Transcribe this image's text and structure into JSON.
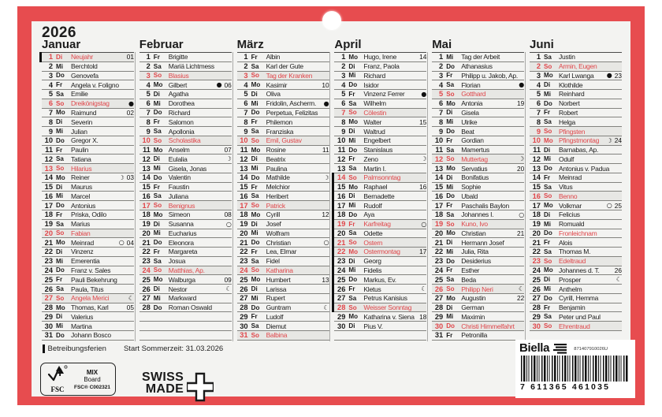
{
  "year": "2026",
  "colors": {
    "frame_red": "#e74c4f",
    "card_bg": "#f3f3f1",
    "holiday_red": "#e0474b",
    "shade": "#e7e7e4"
  },
  "moon_glyphs": {
    "new": "●",
    "first": "☽",
    "full": "○",
    "last": "☾"
  },
  "legend": {
    "betreibungsferien": "Betreibungsferien",
    "sommerzeit": "Start Sommerzeit: 31.03.2026"
  },
  "fsc": {
    "label": "FSC",
    "mix": "MIX",
    "board": "Board",
    "cert": "FSC® C002321"
  },
  "swiss": {
    "line1": "SWISS",
    "line2": "MADE"
  },
  "brand": {
    "name": "Biella",
    "code": "871407910026U"
  },
  "barcode": {
    "digits": "7 611365 461035"
  },
  "months": [
    {
      "name": "Januar",
      "days": [
        {
          "d": 1,
          "wd": "Di",
          "name": "Neujahr",
          "red": true,
          "bar": true,
          "week": "01"
        },
        {
          "d": 2,
          "wd": "Mi",
          "name": "Berchtold"
        },
        {
          "d": 3,
          "wd": "Do",
          "name": "Genovefa"
        },
        {
          "d": 4,
          "wd": "Fr",
          "name": "Angela v. Foligno"
        },
        {
          "d": 5,
          "wd": "Sa",
          "name": "Emilie"
        },
        {
          "d": 6,
          "wd": "So",
          "name": "Dreikönigstag",
          "red": true,
          "moon": "new"
        },
        {
          "d": 7,
          "wd": "Mo",
          "name": "Raimund",
          "week": "02"
        },
        {
          "d": 8,
          "wd": "Di",
          "name": "Severin"
        },
        {
          "d": 9,
          "wd": "Mi",
          "name": "Julian"
        },
        {
          "d": 10,
          "wd": "Do",
          "name": "Gregor X."
        },
        {
          "d": 11,
          "wd": "Fr",
          "name": "Paulin"
        },
        {
          "d": 12,
          "wd": "Sa",
          "name": "Tatiana"
        },
        {
          "d": 13,
          "wd": "So",
          "name": "Hilarius",
          "red": true
        },
        {
          "d": 14,
          "wd": "Mo",
          "name": "Reiner",
          "moon": "first",
          "week": "03"
        },
        {
          "d": 15,
          "wd": "Di",
          "name": "Maurus"
        },
        {
          "d": 16,
          "wd": "Mi",
          "name": "Marcel"
        },
        {
          "d": 17,
          "wd": "Do",
          "name": "Antonius"
        },
        {
          "d": 18,
          "wd": "Fr",
          "name": "Priska, Odilo"
        },
        {
          "d": 19,
          "wd": "Sa",
          "name": "Marius"
        },
        {
          "d": 20,
          "wd": "So",
          "name": "Fabian",
          "red": true
        },
        {
          "d": 21,
          "wd": "Mo",
          "name": "Meinrad",
          "moon": "full",
          "week": "04"
        },
        {
          "d": 22,
          "wd": "Di",
          "name": "Vinzenz"
        },
        {
          "d": 23,
          "wd": "Mi",
          "name": "Emerentia"
        },
        {
          "d": 24,
          "wd": "Do",
          "name": "Franz v. Sales"
        },
        {
          "d": 25,
          "wd": "Fr",
          "name": "Pauli Bekehrung"
        },
        {
          "d": 26,
          "wd": "Sa",
          "name": "Paula, Titus"
        },
        {
          "d": 27,
          "wd": "So",
          "name": "Angela Merici",
          "red": true,
          "moon": "last"
        },
        {
          "d": 28,
          "wd": "Mo",
          "name": "Thomas, Karl",
          "week": "05"
        },
        {
          "d": 29,
          "wd": "Di",
          "name": "Valerius"
        },
        {
          "d": 30,
          "wd": "Mi",
          "name": "Martina"
        },
        {
          "d": 31,
          "wd": "Do",
          "name": "Johann Bosco"
        }
      ]
    },
    {
      "name": "Februar",
      "days": [
        {
          "d": 1,
          "wd": "Fr",
          "name": "Brigitte"
        },
        {
          "d": 2,
          "wd": "Sa",
          "name": "Mariä Lichtmess"
        },
        {
          "d": 3,
          "wd": "So",
          "name": "Blasius",
          "red": true
        },
        {
          "d": 4,
          "wd": "Mo",
          "name": "Gilbert",
          "moon": "new",
          "week": "06"
        },
        {
          "d": 5,
          "wd": "Di",
          "name": "Agatha"
        },
        {
          "d": 6,
          "wd": "Mi",
          "name": "Dorothea"
        },
        {
          "d": 7,
          "wd": "Do",
          "name": "Richard"
        },
        {
          "d": 8,
          "wd": "Fr",
          "name": "Salomon"
        },
        {
          "d": 9,
          "wd": "Sa",
          "name": "Apollonia"
        },
        {
          "d": 10,
          "wd": "So",
          "name": "Scholastika",
          "red": true
        },
        {
          "d": 11,
          "wd": "Mo",
          "name": "Anselm",
          "week": "07"
        },
        {
          "d": 12,
          "wd": "Di",
          "name": "Eulalia",
          "moon": "first"
        },
        {
          "d": 13,
          "wd": "Mi",
          "name": "Gisela, Jonas"
        },
        {
          "d": 14,
          "wd": "Do",
          "name": "Valentin"
        },
        {
          "d": 15,
          "wd": "Fr",
          "name": "Faustin"
        },
        {
          "d": 16,
          "wd": "Sa",
          "name": "Juliana"
        },
        {
          "d": 17,
          "wd": "So",
          "name": "Benignus",
          "red": true
        },
        {
          "d": 18,
          "wd": "Mo",
          "name": "Simeon",
          "week": "08"
        },
        {
          "d": 19,
          "wd": "Di",
          "name": "Susanna",
          "moon": "full"
        },
        {
          "d": 20,
          "wd": "Mi",
          "name": "Eucharius"
        },
        {
          "d": 21,
          "wd": "Do",
          "name": "Eleonora"
        },
        {
          "d": 22,
          "wd": "Fr",
          "name": "Margareta"
        },
        {
          "d": 23,
          "wd": "Sa",
          "name": "Josua"
        },
        {
          "d": 24,
          "wd": "So",
          "name": "Matthias, Ap.",
          "red": true
        },
        {
          "d": 25,
          "wd": "Mo",
          "name": "Walburga",
          "week": "09"
        },
        {
          "d": 26,
          "wd": "Di",
          "name": "Nestor",
          "moon": "last"
        },
        {
          "d": 27,
          "wd": "Mi",
          "name": "Markward"
        },
        {
          "d": 28,
          "wd": "Do",
          "name": "Roman Oswald"
        }
      ]
    },
    {
      "name": "März",
      "days": [
        {
          "d": 1,
          "wd": "Fr",
          "name": "Albin"
        },
        {
          "d": 2,
          "wd": "Sa",
          "name": "Karl der Gute"
        },
        {
          "d": 3,
          "wd": "So",
          "name": "Tag der Kranken",
          "red": true
        },
        {
          "d": 4,
          "wd": "Mo",
          "name": "Kasimir",
          "week": "10"
        },
        {
          "d": 5,
          "wd": "Di",
          "name": "Oliva"
        },
        {
          "d": 6,
          "wd": "Mi",
          "name": "Fridolin, Ascherm.",
          "moon": "new"
        },
        {
          "d": 7,
          "wd": "Do",
          "name": "Perpetua, Felizitas"
        },
        {
          "d": 8,
          "wd": "Fr",
          "name": "Philemon"
        },
        {
          "d": 9,
          "wd": "Sa",
          "name": "Franziska"
        },
        {
          "d": 10,
          "wd": "So",
          "name": "Emil, Gustav",
          "red": true
        },
        {
          "d": 11,
          "wd": "Mo",
          "name": "Rosine",
          "week": "11"
        },
        {
          "d": 12,
          "wd": "Di",
          "name": "Beatrix"
        },
        {
          "d": 13,
          "wd": "Mi",
          "name": "Paulina"
        },
        {
          "d": 14,
          "wd": "Do",
          "name": "Mathilde",
          "moon": "first"
        },
        {
          "d": 15,
          "wd": "Fr",
          "name": "Melchior"
        },
        {
          "d": 16,
          "wd": "Sa",
          "name": "Heribert"
        },
        {
          "d": 17,
          "wd": "So",
          "name": "Patrick",
          "red": true
        },
        {
          "d": 18,
          "wd": "Mo",
          "name": "Cyrill",
          "week": "12"
        },
        {
          "d": 19,
          "wd": "Di",
          "name": "Josef"
        },
        {
          "d": 20,
          "wd": "Mi",
          "name": "Wolfram"
        },
        {
          "d": 21,
          "wd": "Do",
          "name": "Christian",
          "moon": "full"
        },
        {
          "d": 22,
          "wd": "Fr",
          "name": "Lea, Elmar"
        },
        {
          "d": 23,
          "wd": "Sa",
          "name": "Fidel"
        },
        {
          "d": 24,
          "wd": "So",
          "name": "Katharina",
          "red": true
        },
        {
          "d": 25,
          "wd": "Mo",
          "name": "Humbert",
          "week": "13"
        },
        {
          "d": 26,
          "wd": "Di",
          "name": "Larissa"
        },
        {
          "d": 27,
          "wd": "Mi",
          "name": "Rupert"
        },
        {
          "d": 28,
          "wd": "Do",
          "name": "Guntram",
          "moon": "last"
        },
        {
          "d": 29,
          "wd": "Fr",
          "name": "Ludolf"
        },
        {
          "d": 30,
          "wd": "Sa",
          "name": "Diemut"
        },
        {
          "d": 31,
          "wd": "So",
          "name": "Balbina",
          "red": true
        }
      ]
    },
    {
      "name": "April",
      "days": [
        {
          "d": 1,
          "wd": "Mo",
          "name": "Hugo, Irene",
          "week": "14"
        },
        {
          "d": 2,
          "wd": "Di",
          "name": "Franz, Paola"
        },
        {
          "d": 3,
          "wd": "Mi",
          "name": "Richard"
        },
        {
          "d": 4,
          "wd": "Do",
          "name": "Isidor"
        },
        {
          "d": 5,
          "wd": "Fr",
          "name": "Vinzenz Ferrer",
          "moon": "new"
        },
        {
          "d": 6,
          "wd": "Sa",
          "name": "Wilhelm"
        },
        {
          "d": 7,
          "wd": "So",
          "name": "Cölestin",
          "red": true
        },
        {
          "d": 8,
          "wd": "Mo",
          "name": "Walter",
          "week": "15"
        },
        {
          "d": 9,
          "wd": "Di",
          "name": "Waltrud"
        },
        {
          "d": 10,
          "wd": "Mi",
          "name": "Engelbert"
        },
        {
          "d": 11,
          "wd": "Do",
          "name": "Stanislaus"
        },
        {
          "d": 12,
          "wd": "Fr",
          "name": "Zeno",
          "moon": "first"
        },
        {
          "d": 13,
          "wd": "Sa",
          "name": "Martin I."
        },
        {
          "d": 14,
          "wd": "So",
          "name": "Palmsonntag",
          "red": true,
          "bar": true
        },
        {
          "d": 15,
          "wd": "Mo",
          "name": "Raphael",
          "week": "16",
          "bar": true
        },
        {
          "d": 16,
          "wd": "Di",
          "name": "Bernadette",
          "bar": true
        },
        {
          "d": 17,
          "wd": "Mi",
          "name": "Rudolf",
          "bar": true
        },
        {
          "d": 18,
          "wd": "Do",
          "name": "Aya",
          "bar": true
        },
        {
          "d": 19,
          "wd": "Fr",
          "name": "Karfreitag",
          "red": true,
          "moon": "full",
          "bar": true
        },
        {
          "d": 20,
          "wd": "Sa",
          "name": "Odette",
          "bar": true
        },
        {
          "d": 21,
          "wd": "So",
          "name": "Ostern",
          "red": true,
          "bar": true
        },
        {
          "d": 22,
          "wd": "Mo",
          "name": "Ostermontag",
          "red": true,
          "week": "17",
          "bar": true
        },
        {
          "d": 23,
          "wd": "Di",
          "name": "Georg",
          "bar": true
        },
        {
          "d": 24,
          "wd": "Mi",
          "name": "Fidelis",
          "bar": true
        },
        {
          "d": 25,
          "wd": "Do",
          "name": "Markus, Ev.",
          "bar": true
        },
        {
          "d": 26,
          "wd": "Fr",
          "name": "Kletus",
          "moon": "last",
          "bar": true
        },
        {
          "d": 27,
          "wd": "Sa",
          "name": "Petrus Kanisius",
          "bar": true
        },
        {
          "d": 28,
          "wd": "So",
          "name": "Weisser Sonntag",
          "red": true,
          "bar": true
        },
        {
          "d": 29,
          "wd": "Mo",
          "name": "Katharina v. Siena",
          "week": "18"
        },
        {
          "d": 30,
          "wd": "Di",
          "name": "Pius V."
        }
      ]
    },
    {
      "name": "Mai",
      "days": [
        {
          "d": 1,
          "wd": "Mi",
          "name": "Tag der Arbeit"
        },
        {
          "d": 2,
          "wd": "Do",
          "name": "Athanasius"
        },
        {
          "d": 3,
          "wd": "Fr",
          "name": "Philipp u. Jakob, Ap."
        },
        {
          "d": 4,
          "wd": "Sa",
          "name": "Florian",
          "moon": "new"
        },
        {
          "d": 5,
          "wd": "So",
          "name": "Gotthard",
          "red": true
        },
        {
          "d": 6,
          "wd": "Mo",
          "name": "Antonia",
          "week": "19"
        },
        {
          "d": 7,
          "wd": "Di",
          "name": "Gisela"
        },
        {
          "d": 8,
          "wd": "Mi",
          "name": "Ulrike"
        },
        {
          "d": 9,
          "wd": "Do",
          "name": "Beat"
        },
        {
          "d": 10,
          "wd": "Fr",
          "name": "Gordian"
        },
        {
          "d": 11,
          "wd": "Sa",
          "name": "Mamertus"
        },
        {
          "d": 12,
          "wd": "So",
          "name": "Muttertag",
          "red": true,
          "moon": "first"
        },
        {
          "d": 13,
          "wd": "Mo",
          "name": "Servatius",
          "week": "20"
        },
        {
          "d": 14,
          "wd": "Di",
          "name": "Bonifatius"
        },
        {
          "d": 15,
          "wd": "Mi",
          "name": "Sophie"
        },
        {
          "d": 16,
          "wd": "Do",
          "name": "Ubald"
        },
        {
          "d": 17,
          "wd": "Fr",
          "name": "Paschalis Baylon"
        },
        {
          "d": 18,
          "wd": "Sa",
          "name": "Johannes I.",
          "moon": "full"
        },
        {
          "d": 19,
          "wd": "So",
          "name": "Kuno, Ivo",
          "red": true
        },
        {
          "d": 20,
          "wd": "Mo",
          "name": "Christian",
          "week": "21"
        },
        {
          "d": 21,
          "wd": "Di",
          "name": "Hermann Josef"
        },
        {
          "d": 22,
          "wd": "Mi",
          "name": "Julia, Rita"
        },
        {
          "d": 23,
          "wd": "Do",
          "name": "Desiderius"
        },
        {
          "d": 24,
          "wd": "Fr",
          "name": "Esther"
        },
        {
          "d": 25,
          "wd": "Sa",
          "name": "Beda"
        },
        {
          "d": 26,
          "wd": "So",
          "name": "Philipp Neri",
          "red": true,
          "moon": "last"
        },
        {
          "d": 27,
          "wd": "Mo",
          "name": "Augustin",
          "week": "22"
        },
        {
          "d": 28,
          "wd": "Di",
          "name": "German"
        },
        {
          "d": 29,
          "wd": "Mi",
          "name": "Maximin"
        },
        {
          "d": 30,
          "wd": "Do",
          "name": "Christi Himmelfahrt",
          "red": true
        },
        {
          "d": 31,
          "wd": "Fr",
          "name": "Petronilla"
        }
      ]
    },
    {
      "name": "Juni",
      "days": [
        {
          "d": 1,
          "wd": "Sa",
          "name": "Justin"
        },
        {
          "d": 2,
          "wd": "So",
          "name": "Armin, Eugen",
          "red": true
        },
        {
          "d": 3,
          "wd": "Mo",
          "name": "Karl Lwanga",
          "moon": "new",
          "week": "23"
        },
        {
          "d": 4,
          "wd": "Di",
          "name": "Klothilde"
        },
        {
          "d": 5,
          "wd": "Mi",
          "name": "Reinhard"
        },
        {
          "d": 6,
          "wd": "Do",
          "name": "Norbert"
        },
        {
          "d": 7,
          "wd": "Fr",
          "name": "Robert"
        },
        {
          "d": 8,
          "wd": "Sa",
          "name": "Helga"
        },
        {
          "d": 9,
          "wd": "So",
          "name": "Pfingsten",
          "red": true
        },
        {
          "d": 10,
          "wd": "Mo",
          "name": "Pfingstmontag",
          "red": true,
          "moon": "first",
          "week": "24"
        },
        {
          "d": 11,
          "wd": "Di",
          "name": "Barnabas, Ap."
        },
        {
          "d": 12,
          "wd": "Mi",
          "name": "Odulf"
        },
        {
          "d": 13,
          "wd": "Do",
          "name": "Antonius v. Padua"
        },
        {
          "d": 14,
          "wd": "Fr",
          "name": "Meinrad"
        },
        {
          "d": 15,
          "wd": "Sa",
          "name": "Vitus"
        },
        {
          "d": 16,
          "wd": "So",
          "name": "Benno",
          "red": true
        },
        {
          "d": 17,
          "wd": "Mo",
          "name": "Volkmar",
          "moon": "full",
          "week": "25"
        },
        {
          "d": 18,
          "wd": "Di",
          "name": "Felicius"
        },
        {
          "d": 19,
          "wd": "Mi",
          "name": "Romuald"
        },
        {
          "d": 20,
          "wd": "Do",
          "name": "Fronleichnam",
          "nameRed": true
        },
        {
          "d": 21,
          "wd": "Fr",
          "name": "Alois"
        },
        {
          "d": 22,
          "wd": "Sa",
          "name": "Thomas M."
        },
        {
          "d": 23,
          "wd": "So",
          "name": "Edeltraud",
          "red": true
        },
        {
          "d": 24,
          "wd": "Mo",
          "name": "Johannes d. T.",
          "week": "26"
        },
        {
          "d": 25,
          "wd": "Di",
          "name": "Prosper",
          "moon": "last"
        },
        {
          "d": 26,
          "wd": "Mi",
          "name": "Anthelm"
        },
        {
          "d": 27,
          "wd": "Do",
          "name": "Cyrill, Hemma"
        },
        {
          "d": 28,
          "wd": "Fr",
          "name": "Benjamin"
        },
        {
          "d": 29,
          "wd": "Sa",
          "name": "Peter und Paul"
        },
        {
          "d": 30,
          "wd": "So",
          "name": "Ehrentraud",
          "red": true
        }
      ]
    }
  ]
}
